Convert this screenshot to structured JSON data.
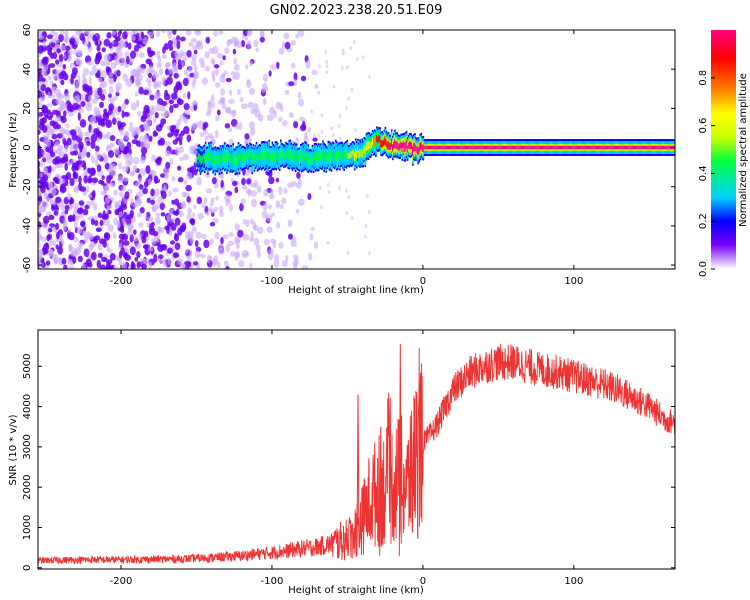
{
  "title": "GN02.2023.238.20.51.E09",
  "chart_data": [
    {
      "type": "heatmap",
      "xlabel": "Height of straight line (km)",
      "ylabel": "Frequency (Hz)",
      "xlim": [
        -255,
        167
      ],
      "ylim": [
        -62,
        60
      ],
      "x_ticks": [
        -200,
        -100,
        0,
        100
      ],
      "y_ticks": [
        60,
        40,
        20,
        0,
        -20,
        -40,
        -60
      ],
      "colorbar": {
        "label": "Normalized spectral amplitude",
        "range": [
          0,
          1
        ],
        "ticks": [
          0.0,
          0.2,
          0.4,
          0.6,
          0.8
        ],
        "colormap": [
          "#ffffff",
          "#7b00ff",
          "#0000ff",
          "#00d4ff",
          "#00ff40",
          "#c8ff00",
          "#ffff00",
          "#ff8000",
          "#ff0000",
          "#ff0080"
        ]
      },
      "ridge": {
        "x": [
          -150,
          -130,
          -110,
          -90,
          -75,
          -60,
          -50,
          -40,
          -35,
          -30,
          -25,
          -20,
          -15,
          -10,
          -5,
          0,
          50,
          100,
          167
        ],
        "freq": [
          -5,
          -6,
          -5,
          -4,
          -6,
          -4,
          -4,
          -2,
          1,
          4,
          2,
          1,
          1,
          0,
          -1,
          0,
          0,
          0,
          0
        ],
        "amplitude": [
          0.35,
          0.4,
          0.4,
          0.45,
          0.4,
          0.4,
          0.45,
          0.5,
          0.6,
          0.8,
          0.85,
          0.9,
          0.9,
          0.95,
          0.95,
          0.95,
          0.95,
          0.95,
          0.95
        ]
      },
      "noise_region_x": [
        -255,
        -70
      ]
    },
    {
      "type": "line",
      "xlabel": "Height of straight line (km)",
      "ylabel": "SNR (10 * v/v)",
      "xlim": [
        -255,
        167
      ],
      "ylim": [
        -30,
        5900
      ],
      "x_ticks": [
        -200,
        -100,
        0,
        100
      ],
      "y_ticks": [
        0,
        1000,
        2000,
        3000,
        4000,
        5000
      ],
      "color": "#ee3333",
      "series": [
        {
          "x": [
            -255,
            -240,
            -220,
            -200,
            -180,
            -160,
            -140,
            -120,
            -100,
            -90,
            -80,
            -70,
            -60,
            -50,
            -45,
            -40,
            -35,
            -30,
            -25,
            -20,
            -15,
            -10,
            -5,
            0,
            5,
            10,
            20,
            30,
            40,
            50,
            60,
            70,
            80,
            90,
            100,
            110,
            120,
            130,
            140,
            150,
            160,
            167
          ],
          "values": [
            180,
            190,
            200,
            200,
            210,
            220,
            250,
            300,
            380,
            420,
            480,
            520,
            600,
            700,
            900,
            1200,
            1700,
            1900,
            2000,
            2100,
            2200,
            2000,
            2700,
            3100,
            3300,
            3600,
            4400,
            4800,
            5000,
            5100,
            5100,
            5000,
            4900,
            4850,
            4750,
            4650,
            4550,
            4400,
            4200,
            4000,
            3700,
            3600
          ]
        }
      ],
      "spikes": [
        {
          "x": -43,
          "value": 4300
        },
        {
          "x": -15,
          "value": 5550
        },
        {
          "x": -28,
          "value": 3500
        }
      ]
    }
  ]
}
